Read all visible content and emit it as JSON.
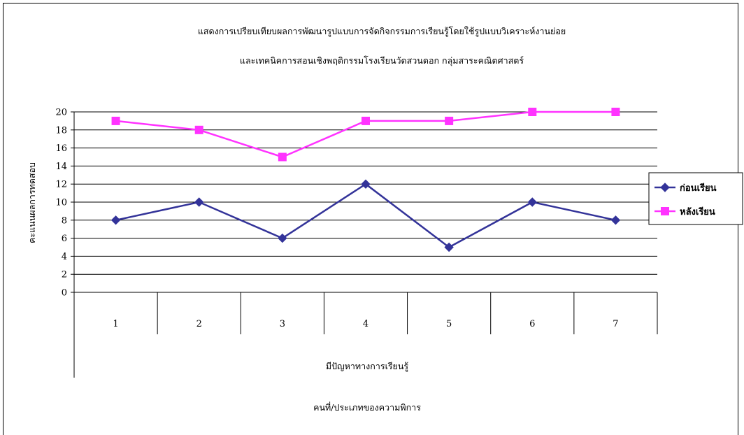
{
  "chart_data": {
    "type": "line",
    "title_lines": [
      "แสดงการเปรียบเทียบผลการพัฒนารูปแบบการจัดกิจกรรมการเรียนรู้โดยใช้รูปแบบวิเคราะห์งานย่อย",
      "และเทคนิคการสอนเชิงพฤติกรรมโรงเรียนวัดสวนดอก กลุ่มสาระคณิตศาสตร์"
    ],
    "ylabel": "คะแนนผลการทดสอบ",
    "xlabel_lines": [
      "มีปัญหาทางการเรียนรู้",
      "คนที่/ประเภทของความพิการ"
    ],
    "categories": [
      "1",
      "2",
      "3",
      "4",
      "5",
      "6",
      "7"
    ],
    "ylim": [
      0,
      20
    ],
    "yticks": [
      0,
      2,
      4,
      6,
      8,
      10,
      12,
      14,
      16,
      18,
      20
    ],
    "grid": true,
    "legend_position": "right",
    "series": [
      {
        "name": "ก่อนเรียน",
        "values": [
          8,
          10,
          6,
          12,
          5,
          10,
          8
        ],
        "color": "#333399",
        "marker": "diamond"
      },
      {
        "name": "หลังเรียน",
        "values": [
          19,
          18,
          15,
          19,
          19,
          20,
          20
        ],
        "color": "#ff33ff",
        "marker": "square"
      }
    ]
  }
}
